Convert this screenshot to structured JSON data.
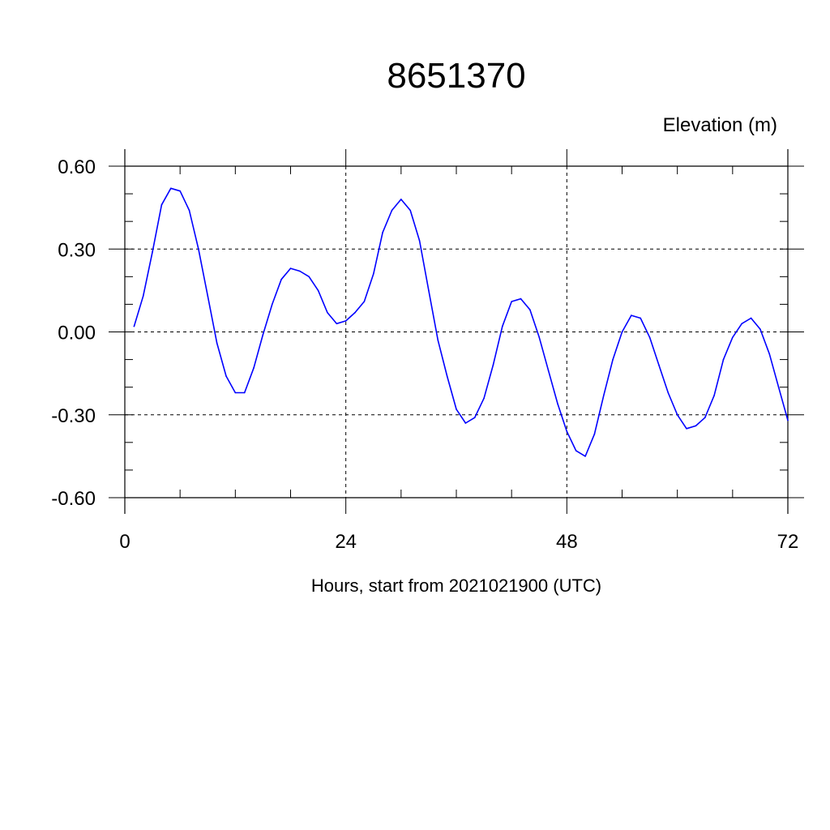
{
  "chart_data": {
    "type": "line",
    "title": "8651370",
    "ylabel": "Elevation (m)",
    "xlabel": "Hours, start from 2021021900 (UTC)",
    "xlim": [
      0,
      72
    ],
    "ylim": [
      -0.6,
      0.6
    ],
    "xticks": [
      0,
      24,
      48,
      72
    ],
    "xtick_labels": [
      "0",
      "24",
      "48",
      "72"
    ],
    "yticks": [
      0.6,
      0.3,
      0.0,
      -0.3,
      -0.6
    ],
    "ytick_labels": [
      "0.60",
      "0.30",
      "0.00",
      "-0.30",
      "-0.60"
    ],
    "grid": true,
    "line_color": "#0000ff",
    "series": [
      {
        "x": [
          1,
          2,
          3,
          4,
          5,
          6,
          7,
          8,
          9,
          10,
          11,
          12,
          13,
          14,
          15,
          16,
          17,
          18,
          19,
          20,
          21,
          22,
          23,
          24,
          25,
          26,
          27,
          28,
          29,
          30,
          31,
          32,
          33,
          34,
          35,
          36,
          37,
          38,
          39,
          40,
          41,
          42,
          43,
          44,
          45,
          46,
          47,
          48,
          49,
          50,
          51,
          52,
          53,
          54,
          55,
          56,
          57,
          58,
          59,
          60,
          61,
          62,
          63,
          64,
          65,
          66,
          67,
          68,
          69,
          70,
          71,
          72
        ],
        "values": [
          0.02,
          0.13,
          0.29,
          0.46,
          0.52,
          0.51,
          0.44,
          0.3,
          0.13,
          -0.04,
          -0.16,
          -0.22,
          -0.22,
          -0.13,
          -0.01,
          0.1,
          0.19,
          0.23,
          0.22,
          0.2,
          0.15,
          0.07,
          0.03,
          0.04,
          0.07,
          0.11,
          0.21,
          0.36,
          0.44,
          0.48,
          0.44,
          0.33,
          0.15,
          -0.03,
          -0.16,
          -0.28,
          -0.33,
          -0.31,
          -0.24,
          -0.12,
          0.02,
          0.11,
          0.12,
          0.08,
          -0.02,
          -0.14,
          -0.26,
          -0.36,
          -0.43,
          -0.45,
          -0.37,
          -0.23,
          -0.1,
          0.0,
          0.06,
          0.05,
          -0.02,
          -0.12,
          -0.22,
          -0.3,
          -0.35,
          -0.34,
          -0.31,
          -0.23,
          -0.1,
          -0.02,
          0.03,
          0.05,
          0.01,
          -0.08,
          -0.2,
          -0.32
        ]
      }
    ]
  }
}
